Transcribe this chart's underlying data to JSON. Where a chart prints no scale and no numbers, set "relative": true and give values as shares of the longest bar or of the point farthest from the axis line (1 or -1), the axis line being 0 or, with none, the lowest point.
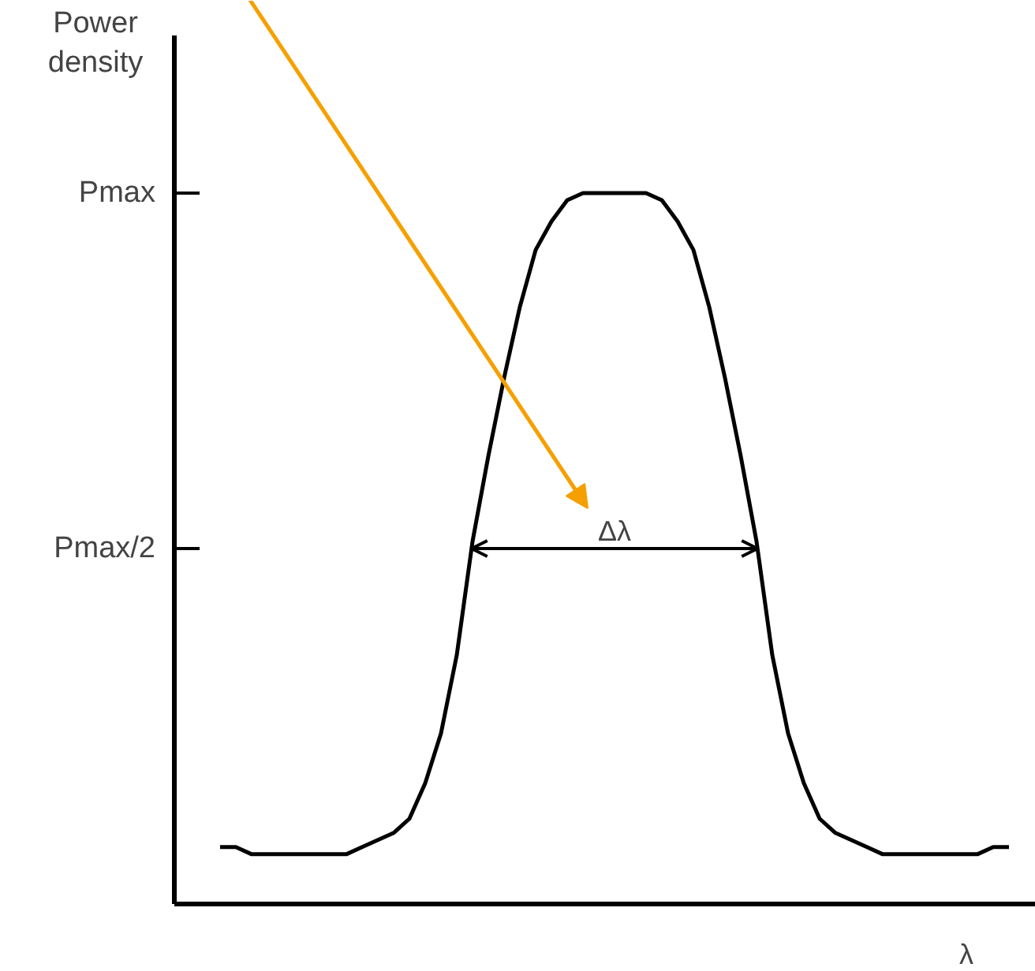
{
  "chart_data": {
    "type": "line",
    "ylabel": "Power density",
    "xlabel": "λ",
    "relative": true,
    "categories": [
      null,
      null,
      null,
      null,
      null,
      null,
      null,
      null,
      null,
      null,
      null,
      null,
      null,
      null,
      null,
      null,
      null,
      null,
      null,
      null,
      null,
      null,
      null,
      null,
      null,
      null,
      null,
      null,
      null,
      null,
      null,
      null,
      null,
      null,
      null,
      null,
      null,
      null,
      null,
      null,
      null,
      null,
      null,
      null,
      null,
      null,
      null,
      null,
      null,
      null,
      null
    ],
    "series": [
      {
        "color": "#000000",
        "values": [
          0.08,
          0.08,
          0.07,
          0.07,
          0.07,
          0.07,
          0.07,
          0.07,
          0.07,
          0.08,
          0.09,
          0.1,
          0.12,
          0.17,
          0.24,
          0.35,
          0.51,
          0.63,
          0.74,
          0.84,
          0.92,
          0.96,
          0.99,
          1.0,
          1.0,
          1.0,
          1.0,
          1.0,
          0.99,
          0.96,
          0.92,
          0.84,
          0.74,
          0.63,
          0.51,
          0.35,
          0.24,
          0.17,
          0.12,
          0.1,
          0.09,
          0.08,
          0.07,
          0.07,
          0.07,
          0.07,
          0.07,
          0.07,
          0.07,
          0.08,
          0.08
        ]
      }
    ],
    "annotations": [
      "Pmax",
      "Pmax/2",
      "Δλ"
    ]
  }
}
